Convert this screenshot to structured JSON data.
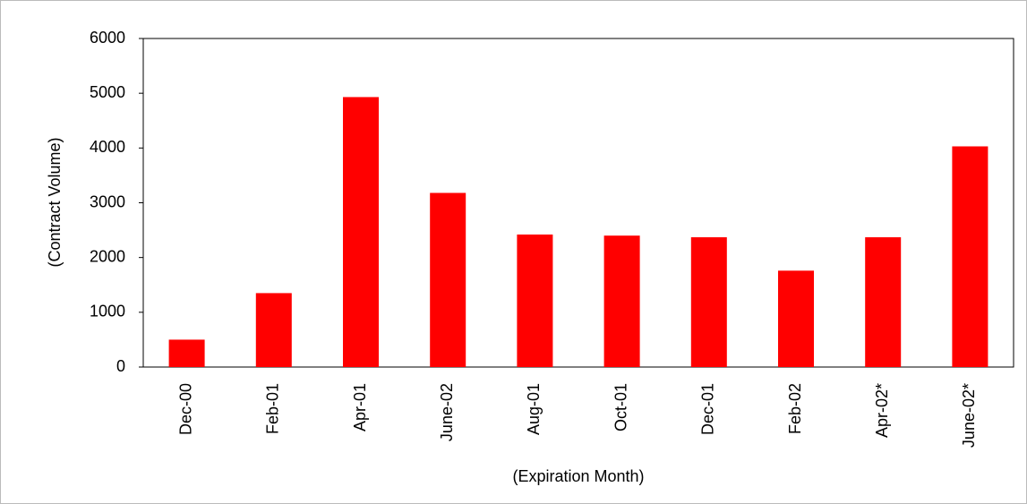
{
  "chart_data": {
    "type": "bar",
    "x_label": "(Expiration Month)",
    "y_label": "(Contract Volume)",
    "categories": [
      "Dec-00",
      "Feb-01",
      "Apr-01",
      "June-02",
      "Aug-01",
      "Oct-01",
      "Dec-01",
      "Feb-02",
      "Apr-02*",
      "June-02*"
    ],
    "values": [
      500,
      1350,
      4930,
      3180,
      2420,
      2400,
      2370,
      1760,
      2370,
      4030
    ],
    "color": "#ff0000",
    "ylim": [
      0,
      6000
    ],
    "yticks": [
      0,
      1000,
      2000,
      3000,
      4000,
      5000,
      6000
    ],
    "grid": false
  }
}
